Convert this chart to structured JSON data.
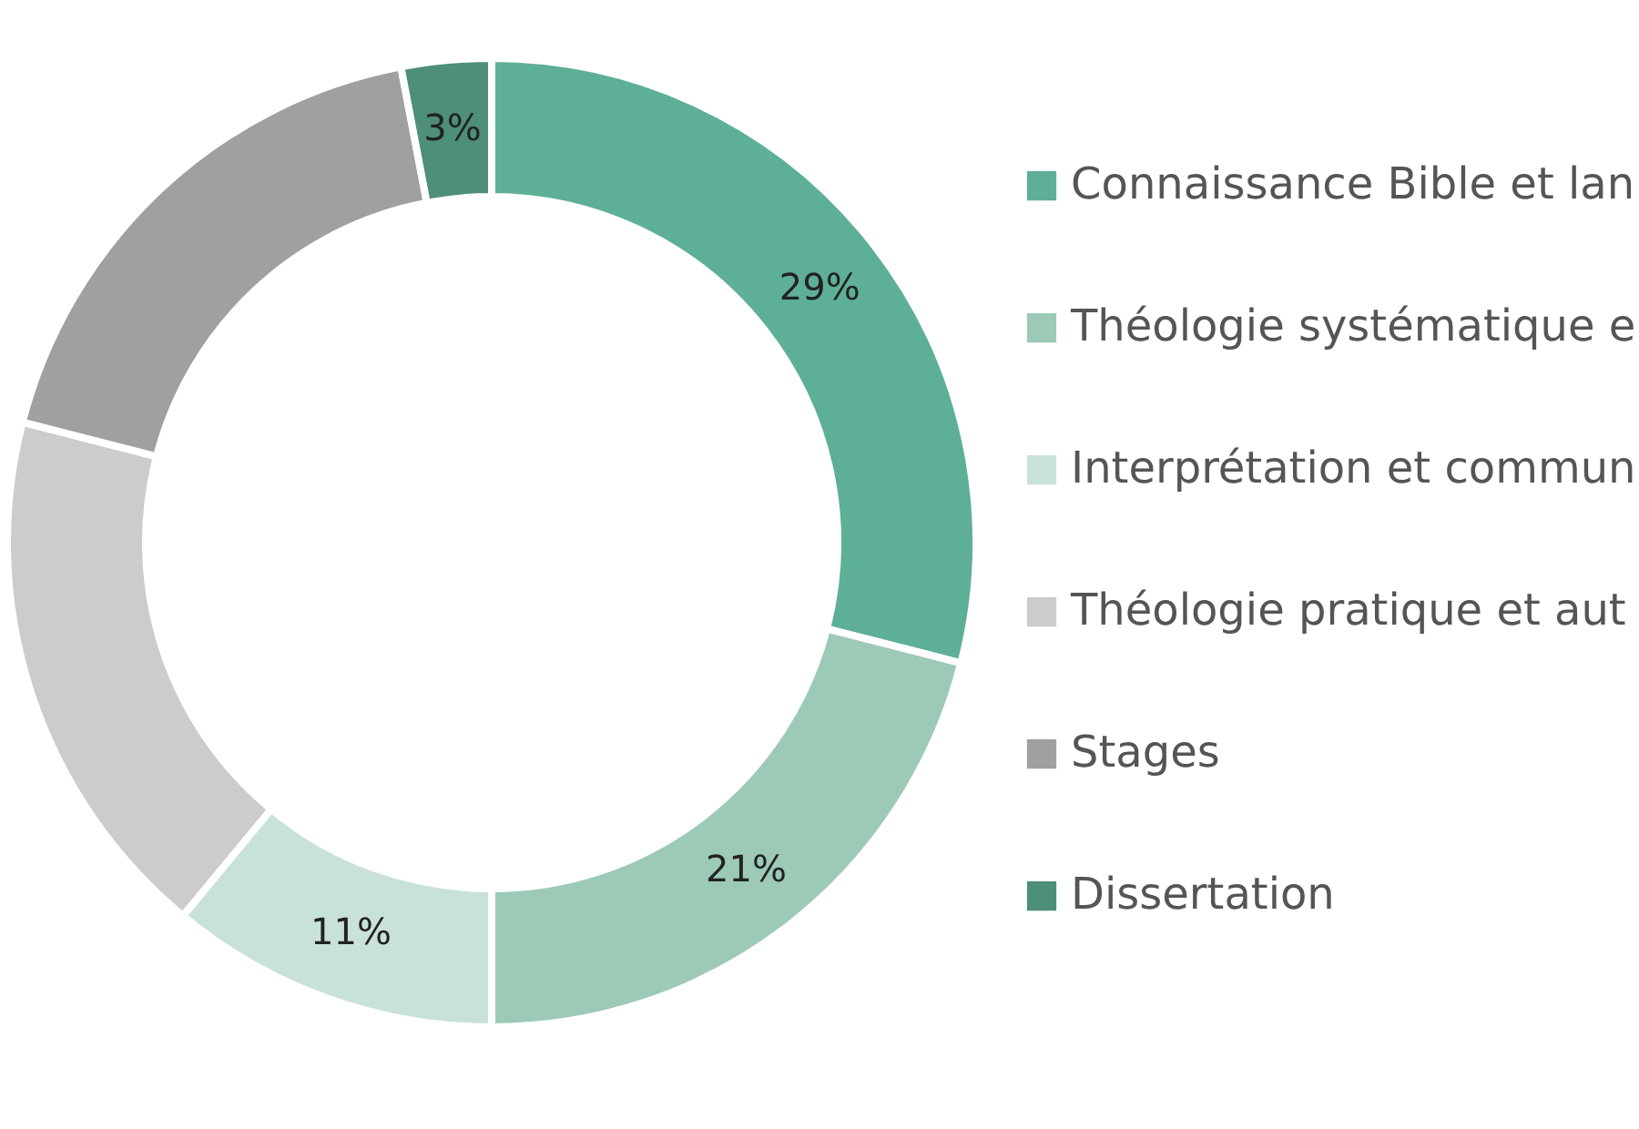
{
  "chart_data": {
    "type": "donut",
    "categories": [
      "Connaissance Bible et lan",
      "Théologie systématique e",
      "Interprétation et commun",
      "Théologie pratique et aut",
      "Stages",
      "Dissertation"
    ],
    "values": [
      29,
      21,
      11,
      18,
      18,
      3
    ],
    "colors": [
      "#5eaf97",
      "#9ccab7",
      "#c9e2d8",
      "#cccccc",
      "#a0a0a0",
      "#4e8f7a"
    ],
    "value_labels": [
      "29%",
      "21%",
      "11%",
      null,
      null,
      "3%"
    ],
    "legend": "right"
  }
}
